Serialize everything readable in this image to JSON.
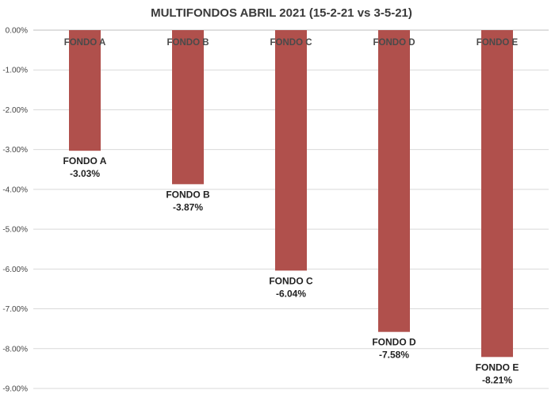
{
  "chart_data": {
    "type": "bar",
    "title": "MULTIFONDOS ABRIL 2021 (15-2-21 vs 3-5-21)",
    "xlabel": "",
    "ylabel": "",
    "categories": [
      "FONDO A",
      "FONDO B",
      "FONDO C",
      "FONDO D",
      "FONDO E"
    ],
    "values": [
      -3.03,
      -3.87,
      -6.04,
      -7.58,
      -8.21
    ],
    "value_labels": [
      "-3.03%",
      "-3.87%",
      "-6.04%",
      "-7.58%",
      "-8.21%"
    ],
    "ylim": [
      -9,
      0
    ],
    "yticks": [
      0,
      -1,
      -2,
      -3,
      -4,
      -5,
      -6,
      -7,
      -8,
      -9
    ],
    "ytick_labels": [
      "0.00%",
      "-1.00%",
      "-2.00%",
      "-3.00%",
      "-4.00%",
      "-5.00%",
      "-6.00%",
      "-7.00%",
      "-8.00%",
      "-9.00%"
    ],
    "grid": true,
    "legend": "none",
    "bar_color": "#b0504c"
  }
}
